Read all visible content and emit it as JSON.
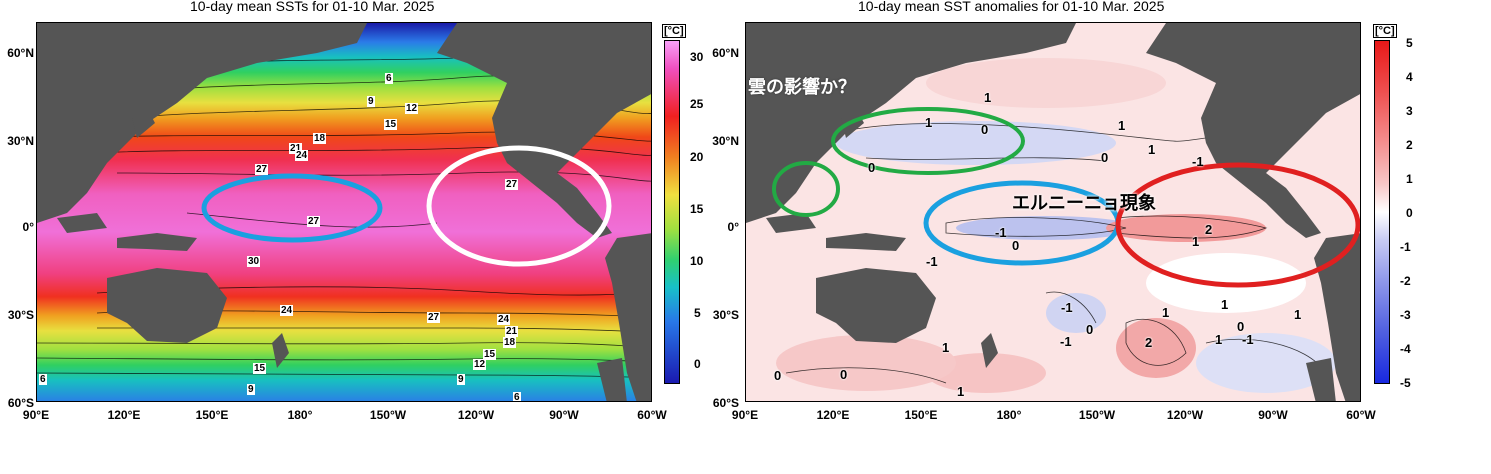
{
  "left_panel": {
    "title": "10-day mean SSTs for 01-10 Mar. 2025",
    "unit": "[°C]",
    "colorbar_ticks": [
      "30",
      "25",
      "20",
      "15",
      "10",
      "5",
      "0"
    ],
    "contour_labels": [
      "6",
      "9",
      "12",
      "15",
      "18",
      "21",
      "24",
      "27",
      "27",
      "27",
      "30",
      "24",
      "27",
      "24",
      "21",
      "18",
      "15",
      "12",
      "9",
      "6",
      "15",
      "9",
      "6"
    ]
  },
  "right_panel": {
    "title": "10-day mean SST anomalies for 01-10 Mar. 2025",
    "unit": "[°C]",
    "colorbar_ticks": [
      "5",
      "4",
      "3",
      "2",
      "1",
      "0",
      "-1",
      "-2",
      "-3",
      "-4",
      "-5"
    ],
    "anomaly_labels": [
      "1",
      "1",
      "0",
      "0",
      "1",
      "-1",
      "1",
      "0",
      "-1",
      "0",
      "2",
      "1",
      "1",
      "1",
      "1",
      "-1",
      "0",
      "-1",
      "1",
      "2",
      "0",
      "1",
      "0",
      "0",
      "-1",
      "1",
      "-1"
    ],
    "annotations": {
      "cloud": "雲の影響か？",
      "el_nino": "エルニーニョ現象"
    }
  },
  "axes": {
    "lat_labels": [
      "60°N",
      "30°N",
      "0°",
      "30°S",
      "60°S"
    ],
    "lon_labels": [
      "90°E",
      "120°E",
      "150°E",
      "180°",
      "150°W",
      "120°W",
      "90°W",
      "60°W"
    ]
  },
  "colors": {
    "land": "#555555",
    "ellipse_blue": "#1aa0e0",
    "ellipse_white": "#ffffff",
    "ellipse_green": "#22aa44",
    "ellipse_red": "#e02020"
  }
}
